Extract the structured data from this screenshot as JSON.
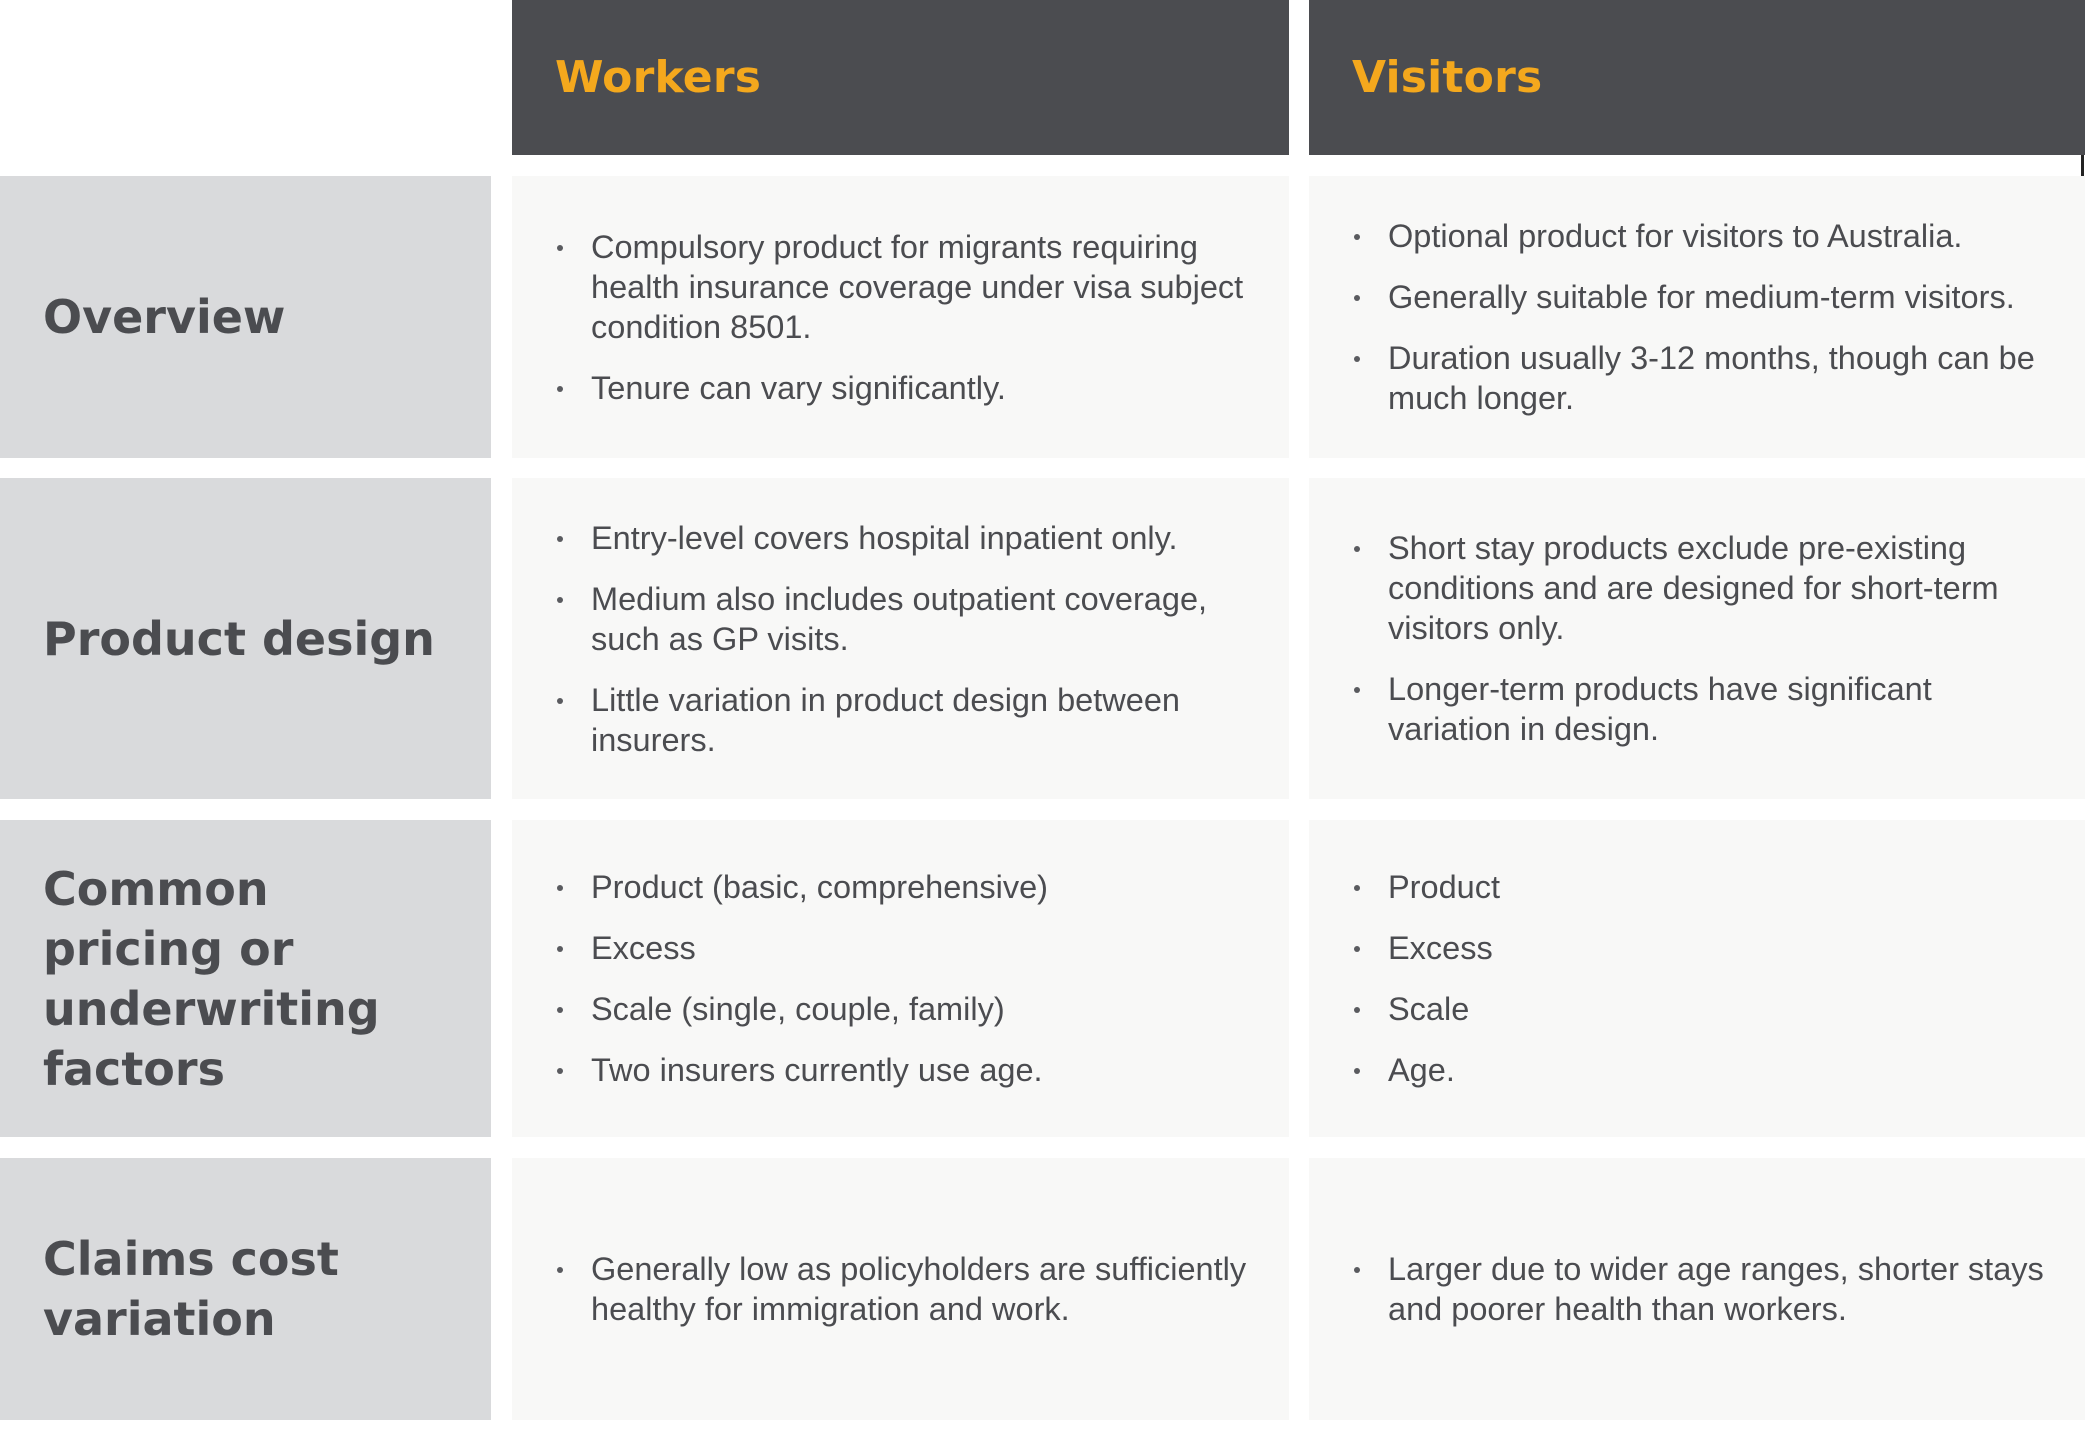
{
  "columns": [
    {
      "label": "Workers"
    },
    {
      "label": "Visitors"
    }
  ],
  "rows": [
    {
      "label": "Overview",
      "workers": [
        "Compulsory product for migrants requiring health insurance coverage under visa subject condition 8501.",
        "Tenure can vary significantly."
      ],
      "visitors": [
        "Optional product for visitors to Australia.",
        "Generally suitable for medium-term visitors.",
        "Duration usually 3-12 months, though can be much longer."
      ]
    },
    {
      "label": "Product design",
      "workers": [
        "Entry-level covers hospital inpatient only.",
        "Medium also includes outpatient coverage, such as GP visits.",
        "Little variation in product design between insurers."
      ],
      "visitors": [
        "Short stay products exclude pre-existing conditions and are designed for short-term visitors only.",
        "Longer-term products have significant variation in design."
      ]
    },
    {
      "label": "Common pricing or underwriting factors",
      "workers": [
        "Product (basic, comprehensive)",
        "Excess",
        "Scale (single, couple, family)",
        "Two insurers currently use age."
      ],
      "visitors": [
        "Product",
        "Excess",
        "Scale",
        "Age."
      ]
    },
    {
      "label": "Claims cost variation",
      "workers": [
        "Generally low as policyholders are sufficiently healthy for immigration and work."
      ],
      "visitors": [
        "Larger due to wider age ranges, shorter stays and poorer health than workers."
      ]
    }
  ],
  "colors": {
    "header_bg": "#4b4c50",
    "header_text": "#f4a81d",
    "label_bg": "#d9dadc",
    "label_text": "#4b4c50",
    "cell_bg": "#f8f8f7",
    "body_text": "#4b4c50"
  }
}
